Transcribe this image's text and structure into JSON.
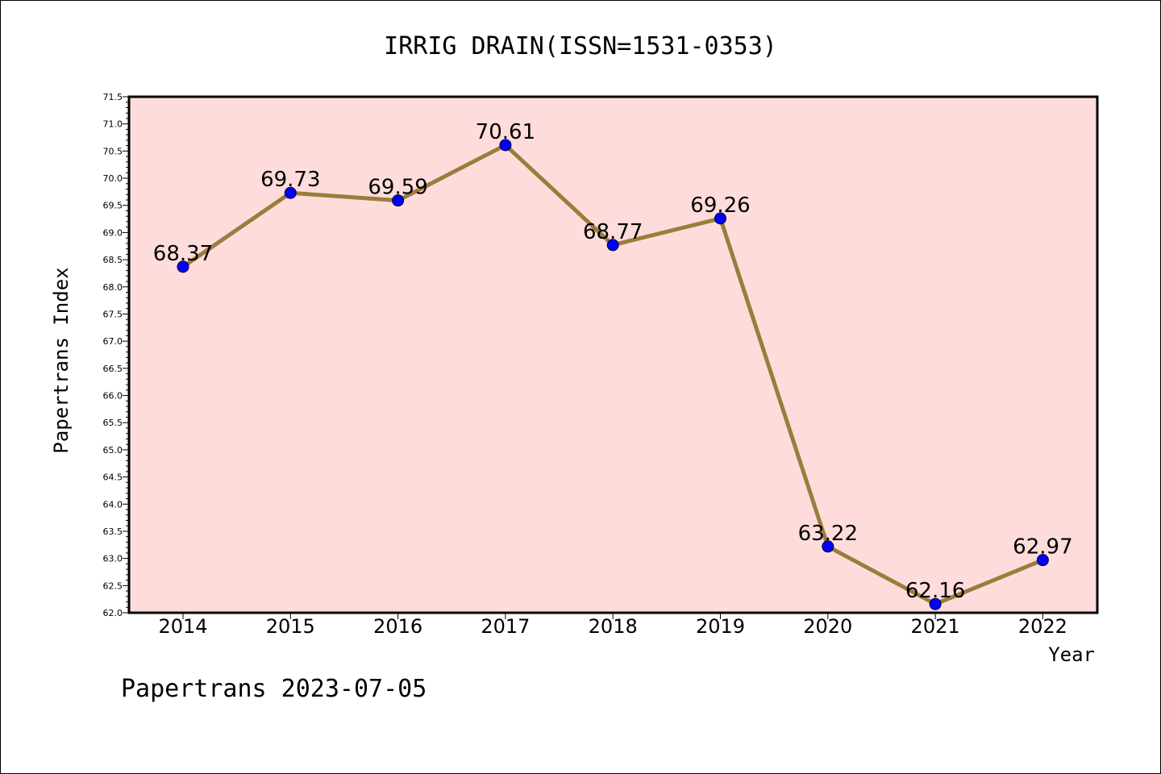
{
  "chart_data": {
    "type": "line",
    "title": "IRRIG DRAIN(ISSN=1531-0353)",
    "xlabel": "Year",
    "ylabel": "Papertrans Index",
    "categories": [
      "2014",
      "2015",
      "2016",
      "2017",
      "2018",
      "2019",
      "2020",
      "2021",
      "2022"
    ],
    "series": [
      {
        "values": [
          68.37,
          69.73,
          69.59,
          70.61,
          68.77,
          69.26,
          63.22,
          62.16,
          62.97
        ],
        "labels": [
          "68.37",
          "69.73",
          "69.59",
          "70.61",
          "68.77",
          "69.26",
          "63.22",
          "62.16",
          "62.97"
        ],
        "line_color": "#9a7d3c",
        "marker_color": "#0000ff"
      }
    ],
    "ylim": [
      62.0,
      71.5
    ],
    "yticks": [
      "62.0",
      "62.5",
      "63.0",
      "63.5",
      "64.0",
      "64.5",
      "65.0",
      "65.5",
      "66.0",
      "66.5",
      "67.0",
      "67.5",
      "68.0",
      "68.5",
      "69.0",
      "69.5",
      "70.0",
      "70.5",
      "71.0",
      "71.5"
    ],
    "plot_background": "#ffdcdc",
    "grid": false,
    "legend": "none"
  },
  "footer": {
    "text": "Papertrans 2023-07-05"
  }
}
